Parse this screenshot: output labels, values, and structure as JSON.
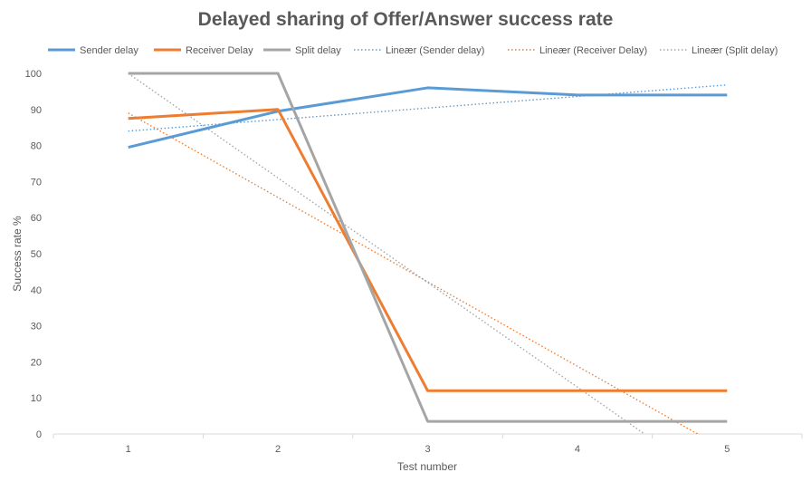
{
  "chart_data": {
    "type": "line",
    "title": "Delayed sharing of Offer/Answer success rate",
    "xlabel": "Test number",
    "ylabel": "Success rate %",
    "categories": [
      "1",
      "2",
      "3",
      "4",
      "5"
    ],
    "ylim": [
      0,
      100
    ],
    "yticks": [
      "0",
      "10",
      "20",
      "30",
      "40",
      "50",
      "60",
      "70",
      "80",
      "90",
      "100"
    ],
    "grid": false,
    "legend_position": "top",
    "series": [
      {
        "name": "Sender delay",
        "color": "#5B9BD5",
        "values": [
          79.5,
          89.5,
          96,
          94,
          94
        ]
      },
      {
        "name": "Receiver Delay",
        "color": "#ED7D31",
        "values": [
          87.5,
          90,
          12,
          12,
          12
        ]
      },
      {
        "name": "Split delay",
        "color": "#A5A5A5",
        "values": [
          100,
          100,
          3.5,
          3.5,
          3.5
        ]
      }
    ],
    "trendlines": [
      {
        "name": "Lineær (Sender delay)",
        "color": "#5B9BD5",
        "values": [
          84,
          87.2,
          90.4,
          93.6,
          96.8
        ]
      },
      {
        "name": "Lineær (Receiver Delay)",
        "color": "#ED7D31",
        "values": [
          89,
          65.6,
          42.2,
          18.8,
          -4.6
        ]
      },
      {
        "name": "Lineær (Split delay)",
        "color": "#A5A5A5",
        "values": [
          100,
          71,
          42,
          13,
          -16
        ]
      }
    ]
  }
}
